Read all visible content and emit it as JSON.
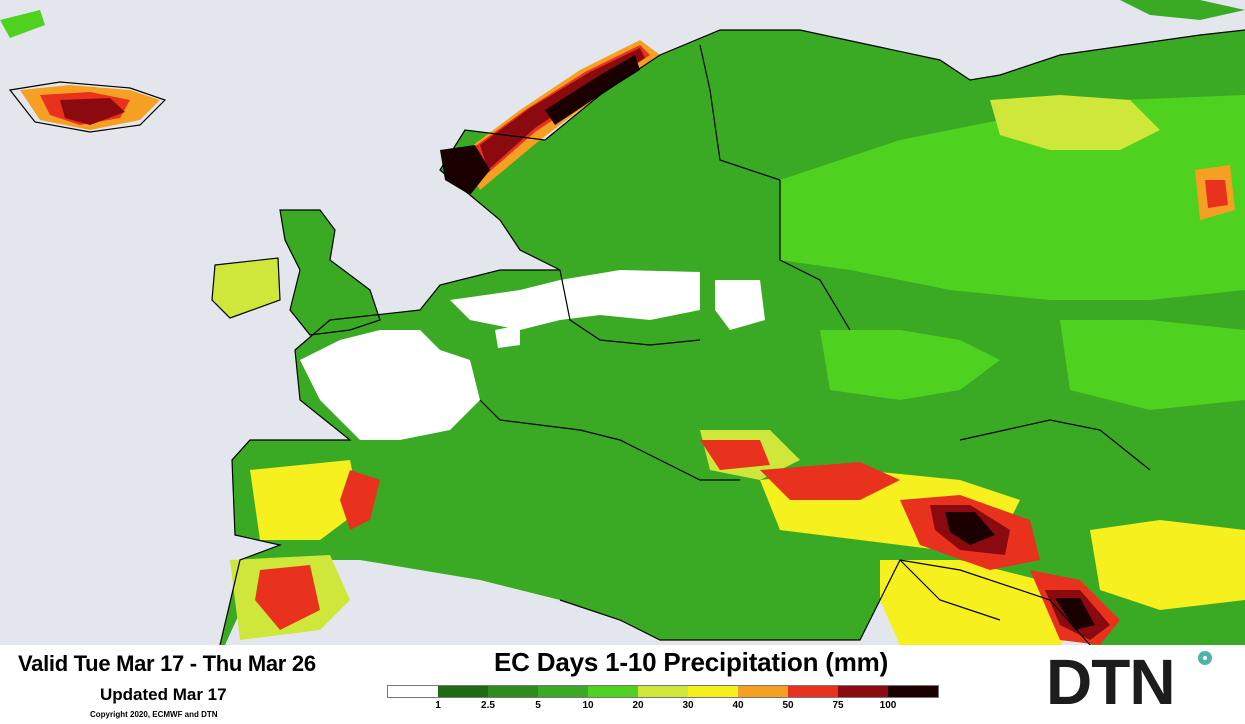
{
  "valid_text": "Valid Tue Mar 17 - Thu Mar 26",
  "updated_text": "Updated Mar 17",
  "copyright": "Copyright 2020, ECMWF and DTN",
  "title": "EC Days 1-10 Precipitation (mm)",
  "logo_text": "DTN",
  "legend": {
    "colors": [
      "#ffffff",
      "#1e6b12",
      "#2e8b1e",
      "#3aaa24",
      "#4fd21f",
      "#cfe63a",
      "#f5f01e",
      "#f5a023",
      "#e8321e",
      "#8a0a10",
      "#1a0000"
    ],
    "labels": [
      "1",
      "2.5",
      "5",
      "10",
      "20",
      "30",
      "40",
      "50",
      "75",
      "100"
    ]
  },
  "map_colors": {
    "sea": "#e3e7ed",
    "no_precip": "#ffffff",
    "light_green": "#4fd21f",
    "mid_green": "#3aaa24",
    "dark_green": "#2e8b1e",
    "yellow": "#f5f01e",
    "orange": "#f5a023",
    "red": "#e8321e",
    "dark_red": "#8a0a10",
    "black": "#1a0000"
  }
}
